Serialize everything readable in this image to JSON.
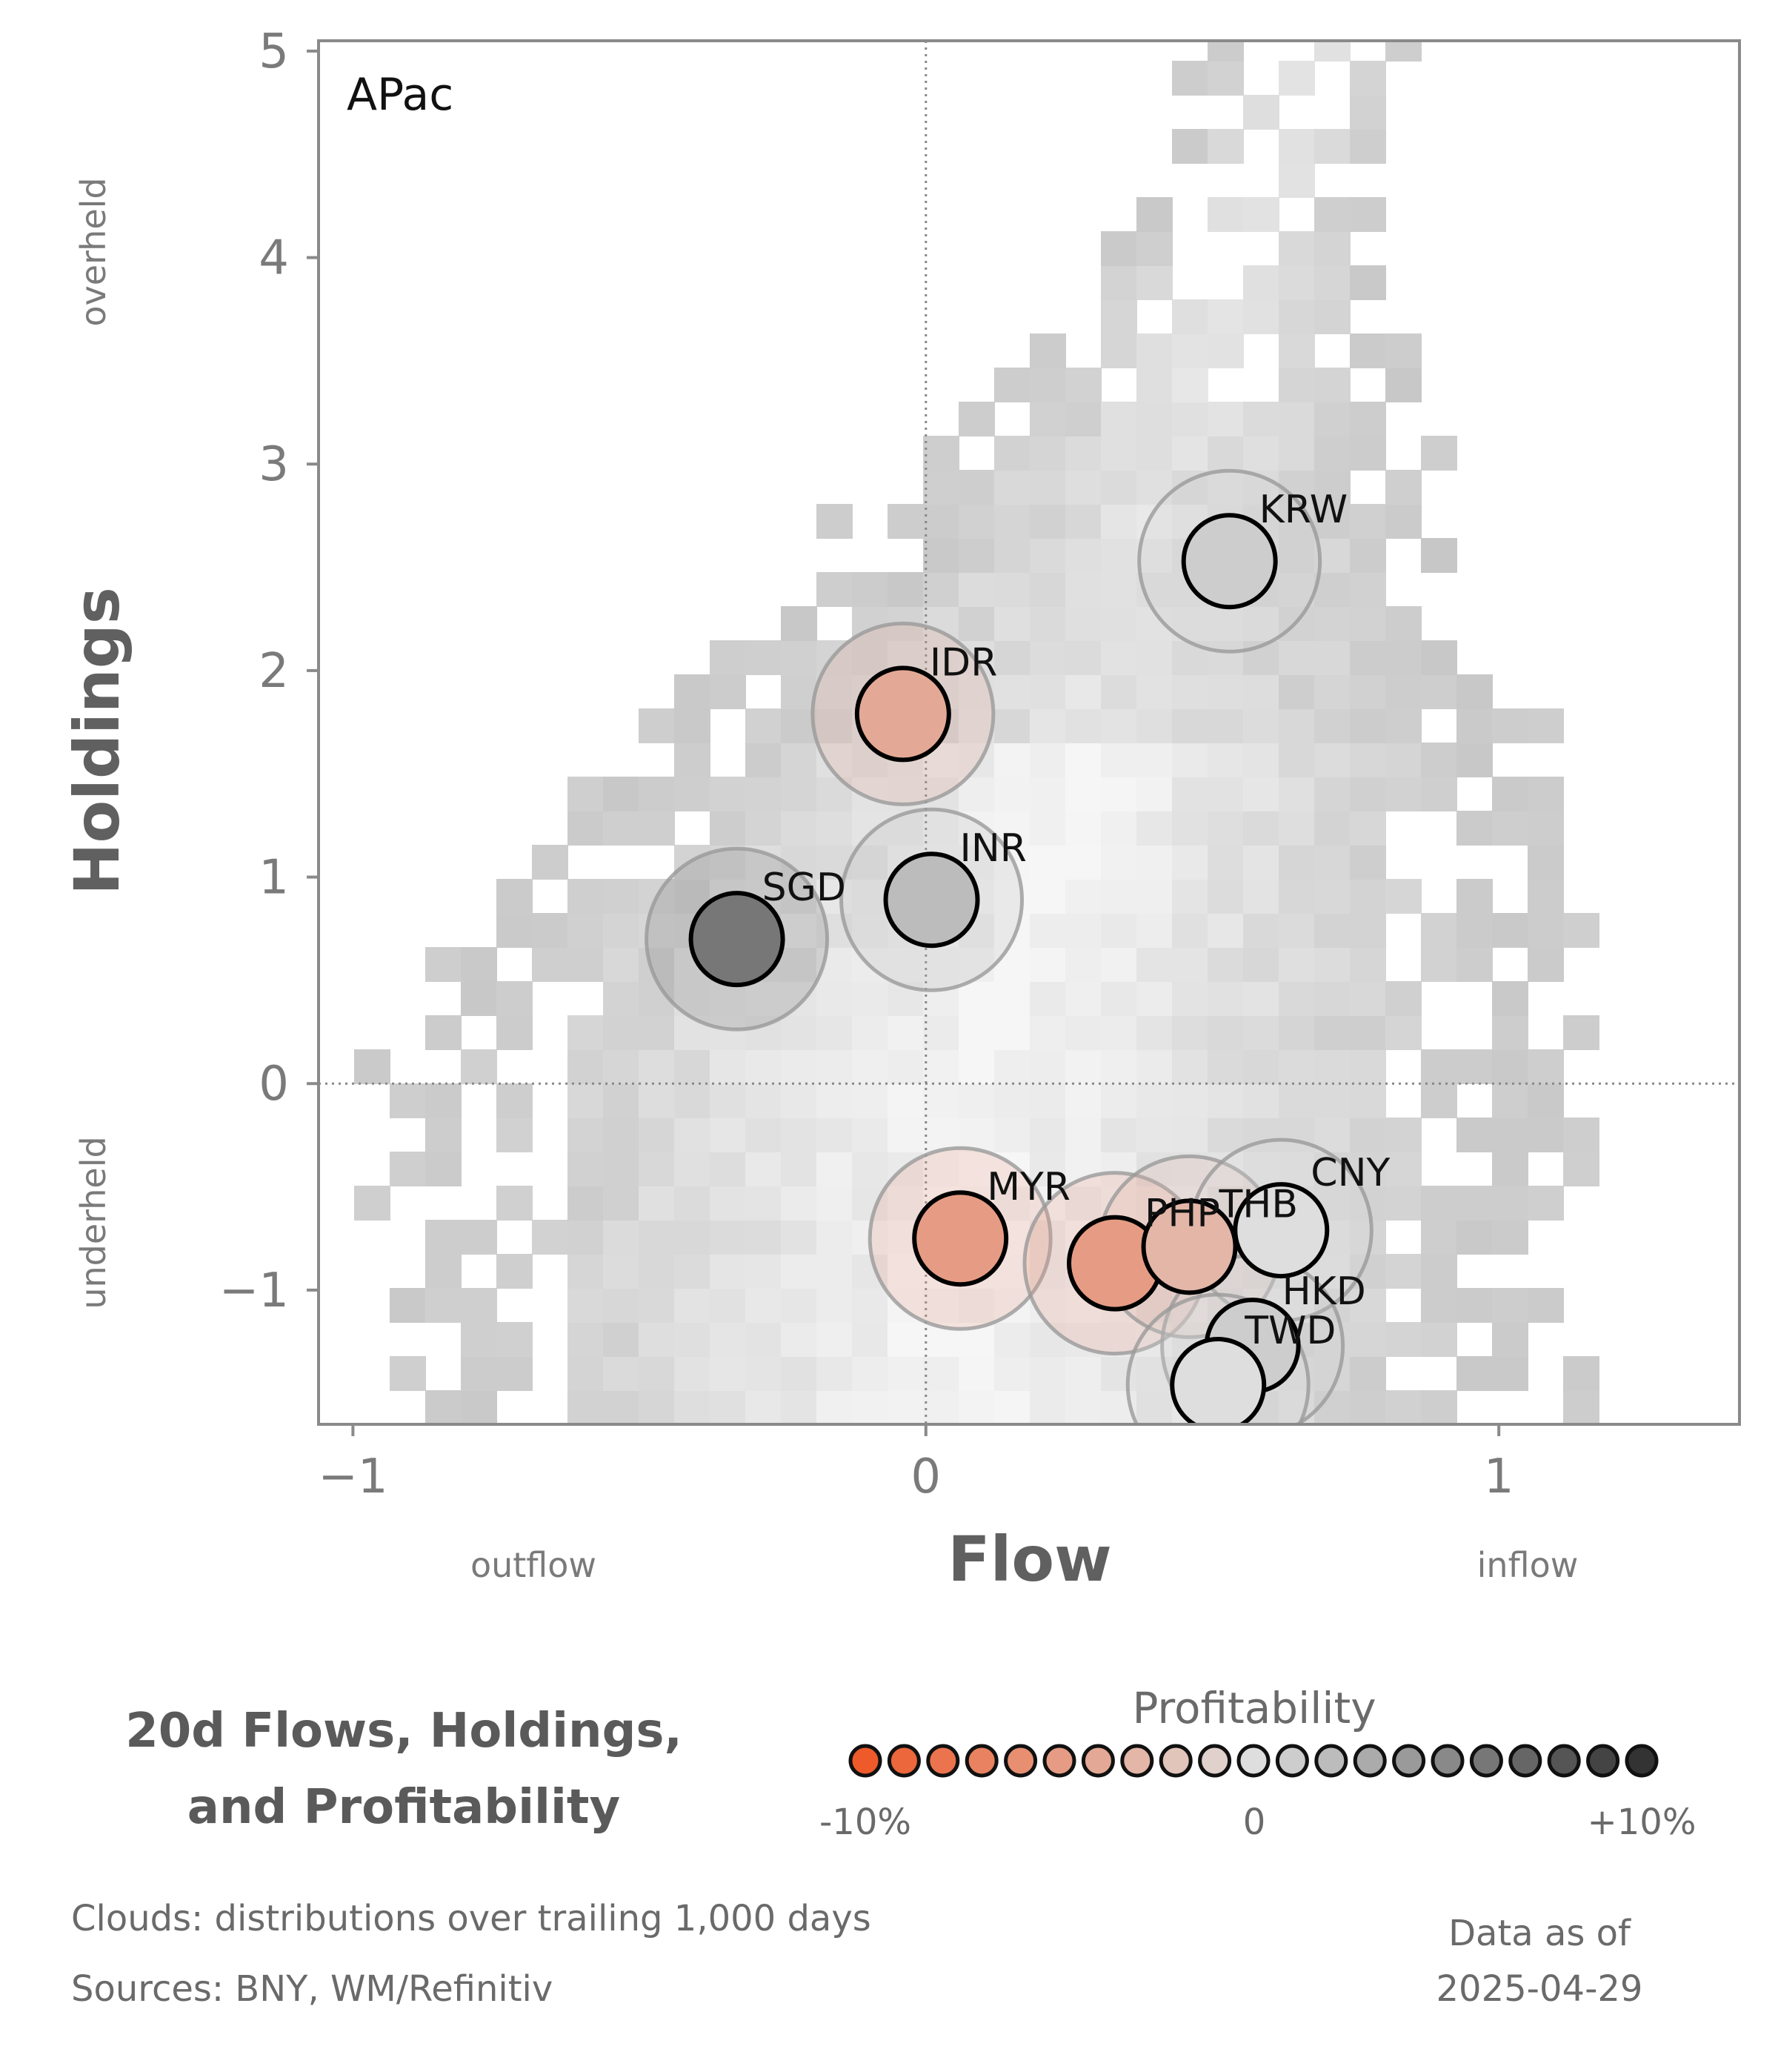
{
  "chart_data": {
    "type": "scatter",
    "panel_label": "APac",
    "xlabel": "Flow",
    "ylabel": "Holdings",
    "xlim": [
      -1.06,
      1.42
    ],
    "ylim": [
      -1.65,
      5.05
    ],
    "x_ticks": [
      {
        "value": -1,
        "label": "−1"
      },
      {
        "value": 0,
        "label": "0"
      },
      {
        "value": 1,
        "label": "1"
      }
    ],
    "y_ticks": [
      {
        "value": 5,
        "label": "5"
      },
      {
        "value": 4,
        "label": "4"
      },
      {
        "value": 3,
        "label": "3"
      },
      {
        "value": 2,
        "label": "2"
      },
      {
        "value": 1,
        "label": "1"
      },
      {
        "value": 0,
        "label": "0"
      },
      {
        "value": -1,
        "label": "−1"
      }
    ],
    "x_side_labels": {
      "low": "outflow",
      "high": "inflow"
    },
    "y_side_labels": {
      "high": "overheld",
      "low": "underheld"
    },
    "reference_lines": {
      "x": 0,
      "y": 0
    },
    "cloud_note": "Clouds:  distributions over trailing 1,000 days",
    "points": [
      {
        "label": "KRW",
        "x": 0.53,
        "y": 2.53,
        "profitability": 1
      },
      {
        "label": "IDR",
        "x": -0.04,
        "y": 1.79,
        "profitability": -4
      },
      {
        "label": "INR",
        "x": 0.01,
        "y": 0.89,
        "profitability": 2
      },
      {
        "label": "SGD",
        "x": -0.33,
        "y": 0.7,
        "profitability": 6
      },
      {
        "label": "MYR",
        "x": 0.06,
        "y": -0.75,
        "profitability": -5
      },
      {
        "label": "PHP",
        "x": 0.33,
        "y": -0.87,
        "profitability": -5
      },
      {
        "label": "THB",
        "x": 0.46,
        "y": -0.79,
        "profitability": -3
      },
      {
        "label": "CNY",
        "x": 0.62,
        "y": -0.71,
        "profitability": 0
      },
      {
        "label": "HKD",
        "x": 0.57,
        "y": -1.27,
        "profitability": 1
      },
      {
        "label": "TWD",
        "x": 0.51,
        "y": -1.46,
        "profitability": 0
      }
    ]
  },
  "legend": {
    "title": "Profitability",
    "min_label": "-10%",
    "mid_label": "0",
    "max_label": "+10%",
    "range": [
      -10,
      10
    ],
    "swatch_count": 21,
    "color_negative": "#ee5a2a",
    "color_neutral": "#dedede",
    "color_positive": "#333333"
  },
  "title_lines": [
    "20d Flows, Holdings,",
    "and Profitability"
  ],
  "footnotes": {
    "clouds": "Clouds:  distributions over trailing 1,000 days",
    "sources": "Sources:  BNY, WM/Refinitiv"
  },
  "date_box": {
    "label": "Data as of",
    "date": "2025-04-29"
  }
}
